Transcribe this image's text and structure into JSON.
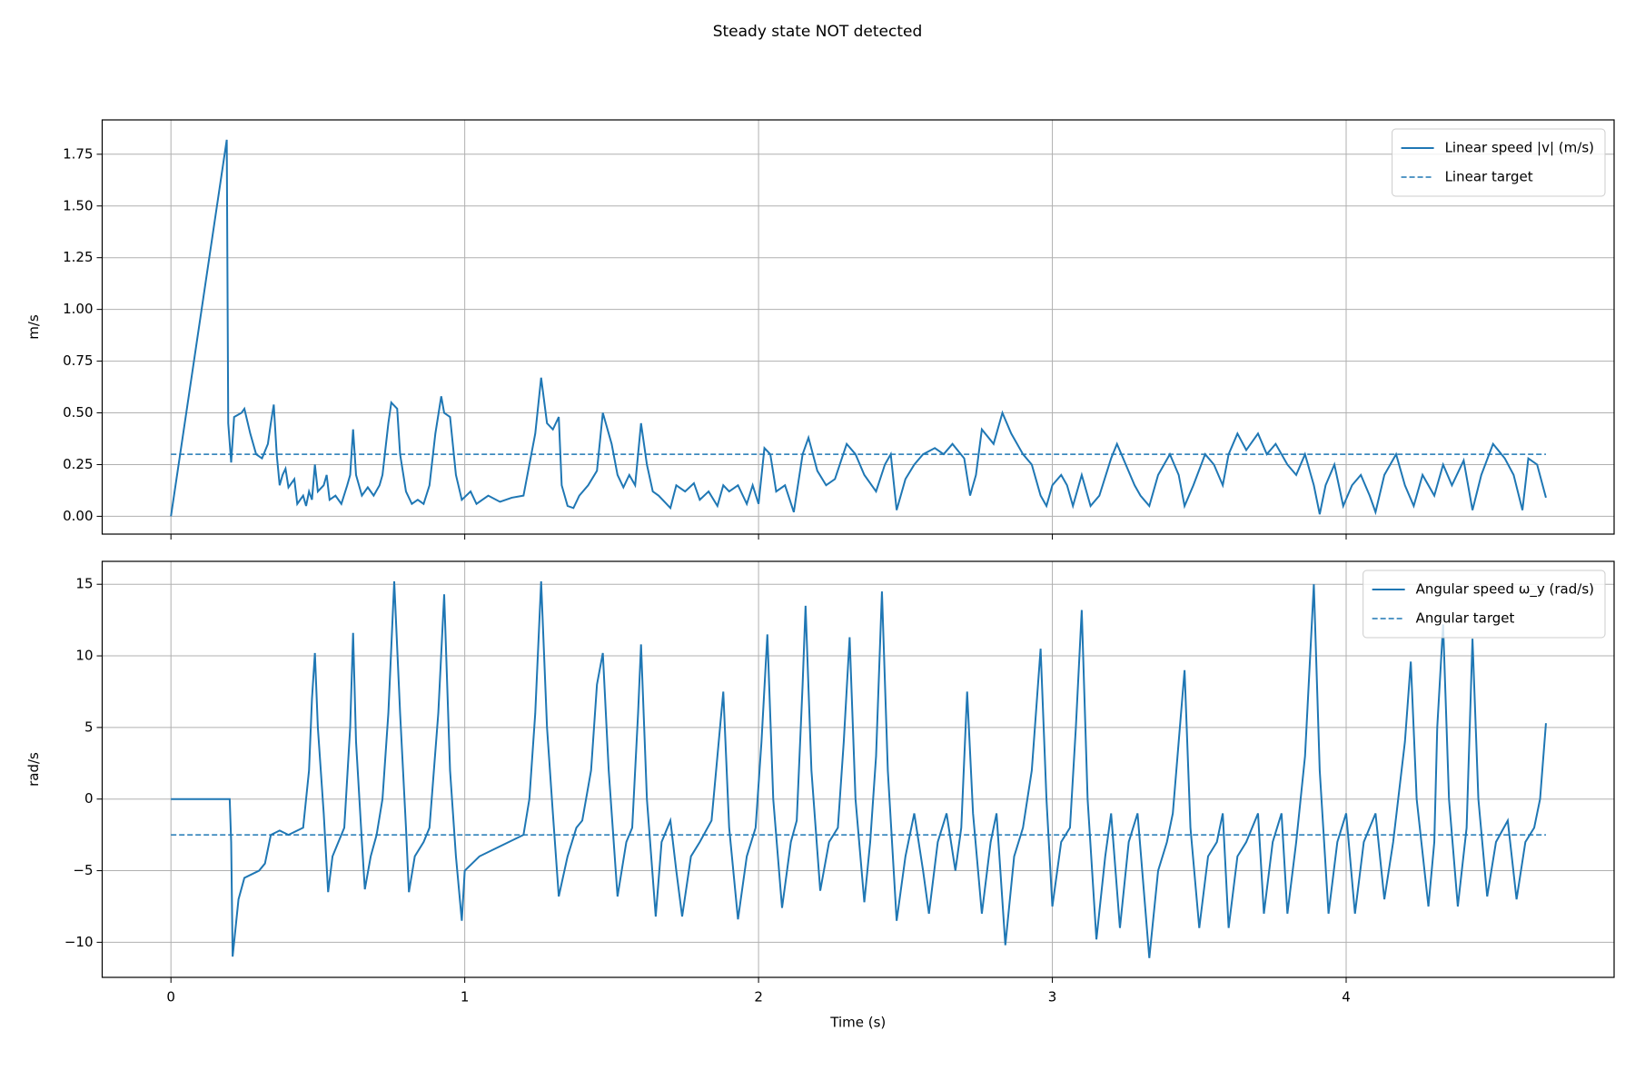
{
  "title": "Steady state NOT detected",
  "chart_data": [
    {
      "type": "line",
      "ylabel": "m/s",
      "grid": true,
      "legend": "upper right",
      "xlim": [
        -0.234,
        4.912
      ],
      "ylim": [
        -0.086,
        1.916
      ],
      "xticks": [
        0,
        1,
        2,
        3,
        4
      ],
      "yticks": [
        {
          "value": 0,
          "label": "0.00"
        },
        0.25,
        {
          "value": 0.5,
          "label": "0.50"
        },
        0.75,
        {
          "value": 1,
          "label": "1.00"
        },
        1.25,
        {
          "value": 1.5,
          "label": "1.50"
        },
        1.75
      ],
      "x": [
        0,
        0.19,
        0.195,
        0.205,
        0.215,
        0.24,
        0.25,
        0.27,
        0.29,
        0.31,
        0.33,
        0.34,
        0.35,
        0.36,
        0.37,
        0.38,
        0.39,
        0.4,
        0.42,
        0.43,
        0.45,
        0.46,
        0.47,
        0.48,
        0.49,
        0.5,
        0.52,
        0.53,
        0.54,
        0.56,
        0.58,
        0.6,
        0.61,
        0.62,
        0.63,
        0.65,
        0.67,
        0.69,
        0.71,
        0.72,
        0.74,
        0.75,
        0.77,
        0.78,
        0.8,
        0.82,
        0.84,
        0.86,
        0.88,
        0.9,
        0.92,
        0.93,
        0.95,
        0.97,
        0.99,
        1.02,
        1.04,
        1.08,
        1.12,
        1.16,
        1.2,
        1.22,
        1.24,
        1.26,
        1.28,
        1.3,
        1.32,
        1.33,
        1.35,
        1.37,
        1.39,
        1.42,
        1.45,
        1.47,
        1.48,
        1.5,
        1.52,
        1.54,
        1.56,
        1.58,
        1.6,
        1.62,
        1.64,
        1.66,
        1.68,
        1.7,
        1.72,
        1.75,
        1.78,
        1.8,
        1.83,
        1.86,
        1.88,
        1.9,
        1.93,
        1.96,
        1.98,
        2.0,
        2.02,
        2.04,
        2.06,
        2.09,
        2.12,
        2.15,
        2.17,
        2.2,
        2.23,
        2.26,
        2.3,
        2.33,
        2.36,
        2.4,
        2.43,
        2.45,
        2.47,
        2.5,
        2.53,
        2.56,
        2.6,
        2.63,
        2.66,
        2.7,
        2.72,
        2.74,
        2.76,
        2.8,
        2.83,
        2.86,
        2.9,
        2.93,
        2.96,
        2.98,
        3.0,
        3.03,
        3.05,
        3.07,
        3.1,
        3.13,
        3.16,
        3.2,
        3.22,
        3.25,
        3.28,
        3.3,
        3.33,
        3.36,
        3.4,
        3.43,
        3.45,
        3.48,
        3.52,
        3.55,
        3.58,
        3.6,
        3.63,
        3.66,
        3.7,
        3.73,
        3.76,
        3.8,
        3.83,
        3.86,
        3.89,
        3.91,
        3.93,
        3.96,
        3.99,
        4.02,
        4.05,
        4.08,
        4.1,
        4.13,
        4.17,
        4.2,
        4.23,
        4.26,
        4.3,
        4.33,
        4.36,
        4.4,
        4.43,
        4.46,
        4.5,
        4.54,
        4.57,
        4.6,
        4.62,
        4.65,
        4.68
      ],
      "series": [
        {
          "name": "Linear speed |v| (m/s)",
          "color": "#1f77b4",
          "dashed": false,
          "values": [
            0,
            1.82,
            0.45,
            0.26,
            0.48,
            0.5,
            0.52,
            0.4,
            0.3,
            0.28,
            0.35,
            0.45,
            0.54,
            0.3,
            0.15,
            0.2,
            0.23,
            0.14,
            0.18,
            0.06,
            0.1,
            0.05,
            0.12,
            0.08,
            0.25,
            0.12,
            0.15,
            0.2,
            0.08,
            0.1,
            0.06,
            0.15,
            0.2,
            0.42,
            0.2,
            0.1,
            0.14,
            0.1,
            0.15,
            0.2,
            0.45,
            0.55,
            0.52,
            0.3,
            0.12,
            0.06,
            0.08,
            0.06,
            0.15,
            0.4,
            0.58,
            0.5,
            0.48,
            0.2,
            0.08,
            0.12,
            0.06,
            0.1,
            0.07,
            0.09,
            0.1,
            0.25,
            0.4,
            0.67,
            0.45,
            0.42,
            0.48,
            0.15,
            0.05,
            0.04,
            0.1,
            0.15,
            0.22,
            0.5,
            0.45,
            0.35,
            0.2,
            0.14,
            0.2,
            0.15,
            0.45,
            0.25,
            0.12,
            0.1,
            0.07,
            0.04,
            0.15,
            0.12,
            0.16,
            0.08,
            0.12,
            0.05,
            0.15,
            0.12,
            0.15,
            0.06,
            0.15,
            0.06,
            0.33,
            0.3,
            0.12,
            0.15,
            0.02,
            0.3,
            0.38,
            0.22,
            0.15,
            0.18,
            0.35,
            0.3,
            0.2,
            0.12,
            0.25,
            0.3,
            0.03,
            0.18,
            0.25,
            0.3,
            0.33,
            0.3,
            0.35,
            0.28,
            0.1,
            0.2,
            0.42,
            0.35,
            0.5,
            0.4,
            0.3,
            0.25,
            0.1,
            0.05,
            0.15,
            0.2,
            0.15,
            0.05,
            0.2,
            0.05,
            0.1,
            0.28,
            0.35,
            0.25,
            0.15,
            0.1,
            0.05,
            0.2,
            0.3,
            0.2,
            0.05,
            0.15,
            0.3,
            0.25,
            0.15,
            0.3,
            0.4,
            0.32,
            0.4,
            0.3,
            0.35,
            0.25,
            0.2,
            0.3,
            0.15,
            0.01,
            0.15,
            0.25,
            0.05,
            0.15,
            0.2,
            0.1,
            0.02,
            0.2,
            0.3,
            0.15,
            0.05,
            0.2,
            0.1,
            0.25,
            0.15,
            0.27,
            0.03,
            0.2,
            0.35,
            0.28,
            0.2,
            0.03,
            0.28,
            0.25,
            0.09
          ]
        },
        {
          "name": "Linear target",
          "color": "#1f77b4",
          "dashed": true,
          "x": [
            0,
            4.68
          ],
          "values": [
            0.3,
            0.3
          ]
        }
      ]
    },
    {
      "type": "line",
      "ylabel": "rad/s",
      "xlabel": "Time (s)",
      "grid": true,
      "legend": "upper right",
      "xlim": [
        -0.234,
        4.912
      ],
      "ylim": [
        -12.45,
        16.6
      ],
      "xticks": [
        0,
        1,
        2,
        3,
        4
      ],
      "yticks": [
        {
          "value": -10,
          "label": "−10"
        },
        {
          "value": -5,
          "label": "−5"
        },
        0,
        5,
        10,
        15
      ],
      "x": [
        0,
        0.2,
        0.205,
        0.21,
        0.23,
        0.25,
        0.3,
        0.32,
        0.34,
        0.37,
        0.4,
        0.43,
        0.45,
        0.47,
        0.48,
        0.49,
        0.5,
        0.52,
        0.535,
        0.55,
        0.57,
        0.59,
        0.61,
        0.62,
        0.63,
        0.65,
        0.66,
        0.68,
        0.7,
        0.72,
        0.74,
        0.76,
        0.78,
        0.8,
        0.81,
        0.83,
        0.86,
        0.88,
        0.91,
        0.93,
        0.95,
        0.97,
        0.99,
        1.0,
        1.05,
        1.1,
        1.15,
        1.2,
        1.22,
        1.24,
        1.26,
        1.28,
        1.3,
        1.32,
        1.35,
        1.38,
        1.4,
        1.43,
        1.45,
        1.47,
        1.49,
        1.52,
        1.55,
        1.57,
        1.59,
        1.6,
        1.62,
        1.65,
        1.67,
        1.7,
        1.72,
        1.74,
        1.77,
        1.8,
        1.84,
        1.86,
        1.88,
        1.9,
        1.93,
        1.96,
        1.99,
        2.01,
        2.03,
        2.05,
        2.08,
        2.11,
        2.13,
        2.15,
        2.16,
        2.18,
        2.21,
        2.24,
        2.27,
        2.29,
        2.31,
        2.33,
        2.36,
        2.38,
        2.4,
        2.42,
        2.44,
        2.47,
        2.5,
        2.53,
        2.56,
        2.58,
        2.61,
        2.64,
        2.67,
        2.69,
        2.71,
        2.73,
        2.76,
        2.79,
        2.81,
        2.84,
        2.87,
        2.9,
        2.93,
        2.96,
        2.98,
        3.0,
        3.03,
        3.06,
        3.08,
        3.1,
        3.12,
        3.15,
        3.18,
        3.2,
        3.23,
        3.26,
        3.29,
        3.33,
        3.36,
        3.39,
        3.41,
        3.43,
        3.45,
        3.47,
        3.5,
        3.53,
        3.56,
        3.58,
        3.6,
        3.63,
        3.66,
        3.7,
        3.72,
        3.75,
        3.78,
        3.8,
        3.83,
        3.86,
        3.89,
        3.91,
        3.94,
        3.97,
        4.0,
        4.03,
        4.06,
        4.1,
        4.13,
        4.16,
        4.2,
        4.22,
        4.24,
        4.28,
        4.3,
        4.31,
        4.33,
        4.35,
        4.38,
        4.41,
        4.43,
        4.45,
        4.48,
        4.51,
        4.55,
        4.58,
        4.61,
        4.64,
        4.66,
        4.68
      ],
      "series": [
        {
          "name": "Angular speed ω_y (rad/s)",
          "color": "#1f77b4",
          "dashed": false,
          "values": [
            0,
            0,
            -3,
            -11,
            -7,
            -5.5,
            -5,
            -4.5,
            -2.5,
            -2.2,
            -2.5,
            -2.2,
            -2,
            2,
            7,
            10.2,
            5,
            -1,
            -6.5,
            -4,
            -3,
            -2,
            5,
            11.6,
            4,
            -3,
            -6.3,
            -4,
            -2.5,
            0,
            6,
            15.2,
            6,
            -2,
            -6.5,
            -4,
            -3,
            -2,
            6,
            14.3,
            2,
            -4,
            -8.5,
            -5,
            -4,
            -3.5,
            -3,
            -2.5,
            0,
            6,
            15.2,
            5,
            -1,
            -6.8,
            -4,
            -2,
            -1.5,
            2,
            8,
            10.2,
            2,
            -6.8,
            -3,
            -2,
            6,
            10.8,
            0,
            -8.2,
            -3,
            -1.5,
            -5,
            -8.2,
            -4,
            -3,
            -1.5,
            3,
            7.5,
            -2,
            -8.4,
            -4,
            -2,
            4,
            11.5,
            0,
            -7.6,
            -3,
            -1.5,
            8,
            13.5,
            2,
            -6.4,
            -3,
            -2,
            4,
            11.3,
            0,
            -7.2,
            -3,
            3,
            14.5,
            2,
            -8.5,
            -4,
            -1,
            -5,
            -8,
            -3,
            -1,
            -5,
            -2,
            7.5,
            -1,
            -8,
            -3,
            -1,
            -10.2,
            -4,
            -2,
            2,
            10.5,
            0,
            -7.5,
            -3,
            -2,
            5,
            13.2,
            0,
            -9.8,
            -4,
            -1,
            -9,
            -3,
            -1,
            -11.1,
            -5,
            -3,
            -1,
            4,
            9,
            -2,
            -9,
            -4,
            -3,
            -1,
            -9,
            -4,
            -3,
            -1,
            -8,
            -3,
            -1,
            -8,
            -3,
            3,
            15,
            2,
            -8,
            -3,
            -1,
            -8,
            -3,
            -1,
            -7,
            -3,
            4,
            9.6,
            0,
            -7.5,
            -3,
            5,
            12.2,
            0,
            -7.5,
            -2,
            11.2,
            0,
            -6.8,
            -3,
            -1.5,
            -7,
            -3,
            -2,
            0,
            5.3
          ]
        },
        {
          "name": "Angular target",
          "color": "#1f77b4",
          "dashed": true,
          "x": [
            0,
            4.68
          ],
          "values": [
            -2.5,
            -2.5
          ]
        }
      ]
    }
  ]
}
